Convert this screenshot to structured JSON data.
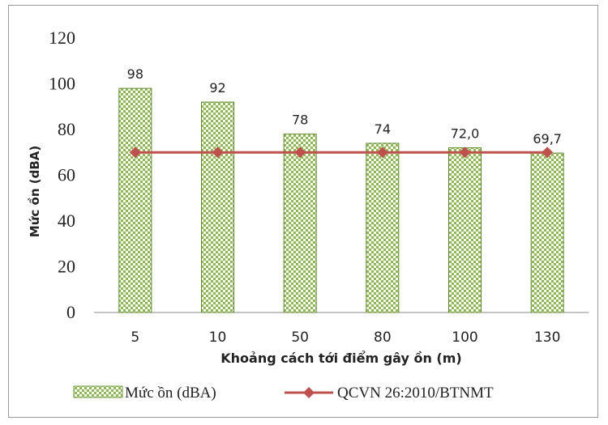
{
  "chart_data": {
    "type": "bar",
    "categories": [
      "5",
      "10",
      "50",
      "80",
      "100",
      "130"
    ],
    "series": [
      {
        "name": "Mức ồn (dBA)",
        "type": "bar",
        "values": [
          98,
          92,
          78,
          74,
          72.0,
          69.7
        ],
        "value_labels": [
          "98",
          "92",
          "78",
          "74",
          "72,0",
          "69,7"
        ],
        "color": "#8cba4e",
        "pattern": "checker"
      },
      {
        "name": "QCVN 26:2010/BTNMT",
        "type": "line",
        "values": [
          70,
          70,
          70,
          70,
          70,
          70
        ],
        "color": "#c0504d",
        "marker": "diamond"
      }
    ],
    "title": "",
    "xlabel": "Khoảng cách tới điểm gây ồn (m)",
    "ylabel": "Mức ồn (dBA)",
    "ylim": [
      0,
      120
    ],
    "yticks": [
      0,
      20,
      40,
      60,
      80,
      100,
      120
    ],
    "grid": false,
    "legend_position": "bottom"
  }
}
